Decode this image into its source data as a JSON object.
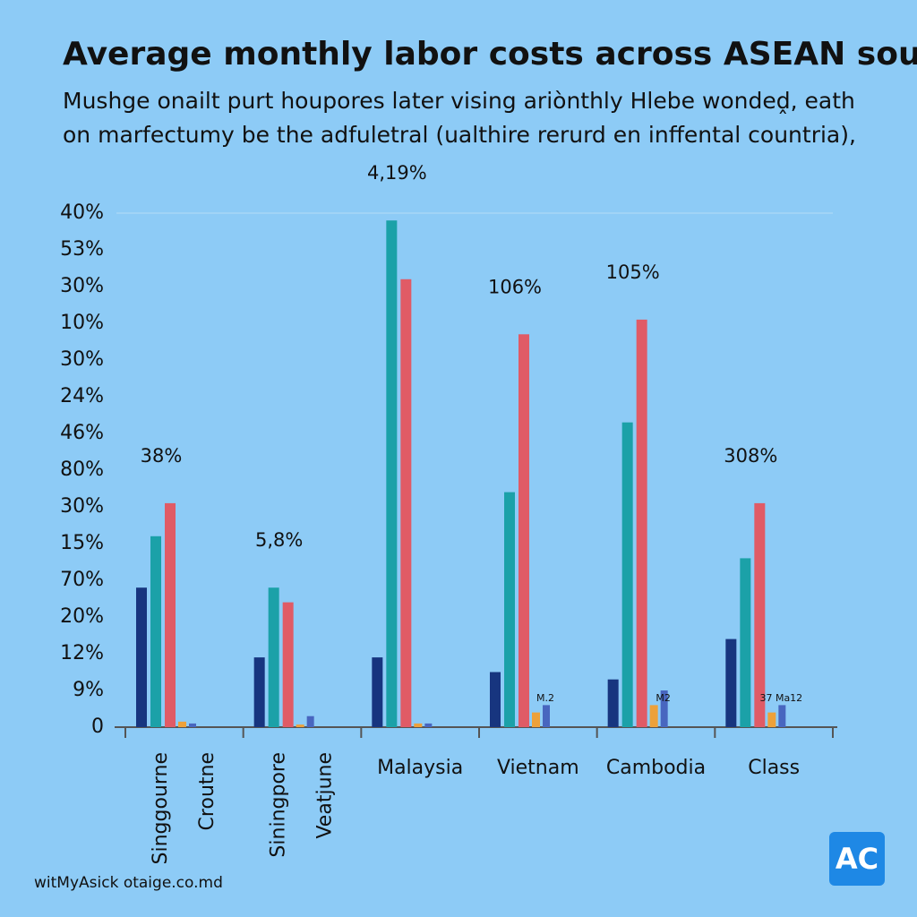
{
  "chart_data": {
    "type": "bar",
    "title": "Average monthly labor costs across ASEAN  sou chon",
    "subtitle_lines": [
      "Mushge onailt purt houpores later vising ariònthly Hlebe wondeḓ, eath",
      "on marfectumy be the adfuletral (ualthire rerurd en inffental countria),"
    ],
    "categories": [
      "Singgourne",
      "Siningpore",
      "Malaysia",
      "Vietnam",
      "Cambodia",
      "Class"
    ],
    "category_second_labels": [
      "Croutne",
      "Veatjune",
      null,
      null,
      null,
      null
    ],
    "group_labels": [
      "38%",
      "5,8%",
      "4,19%",
      "106%",
      "105%",
      "308%"
    ],
    "small_labels": [
      null,
      null,
      null,
      "M.2",
      "M2",
      "37  Ma12"
    ],
    "series": [
      {
        "color": "#17357f",
        "values": [
          3.8,
          1.9,
          1.9,
          1.5,
          1.3,
          2.4
        ]
      },
      {
        "color": "#1ba1a8",
        "values": [
          5.2,
          3.8,
          13.8,
          6.4,
          8.3,
          4.6
        ]
      },
      {
        "color": "#e05b66",
        "values": [
          6.1,
          3.4,
          12.2,
          10.7,
          11.1,
          6.1
        ]
      },
      {
        "color": "#eda13a",
        "values": [
          0.15,
          0.07,
          0.1,
          0.4,
          0.6,
          0.4
        ]
      },
      {
        "color": "#4866bf",
        "values": [
          0.1,
          0.3,
          0.1,
          0.6,
          1.0,
          0.6
        ]
      }
    ],
    "ylim": [
      0,
      14
    ],
    "yticks": [
      0,
      {
        "value": 1,
        "label": "9%"
      },
      {
        "value": 2,
        "label": "12%"
      },
      {
        "value": 3,
        "label": "20%"
      },
      {
        "value": 4,
        "label": "70%"
      },
      {
        "value": 5,
        "label": "15%"
      },
      {
        "value": 6,
        "label": "30%"
      },
      {
        "value": 7,
        "label": "80%"
      },
      {
        "value": 8,
        "label": "46%"
      },
      {
        "value": 9,
        "label": "24%"
      },
      {
        "value": 10,
        "label": "30%"
      },
      {
        "value": 11,
        "label": "10%"
      },
      {
        "value": 12,
        "label": "30%"
      },
      {
        "value": 13,
        "label": "53%"
      },
      {
        "value": 14,
        "label": "40%"
      }
    ],
    "grid": false,
    "footer": "witMyAsick otaige.co.md",
    "logo": "AC"
  }
}
